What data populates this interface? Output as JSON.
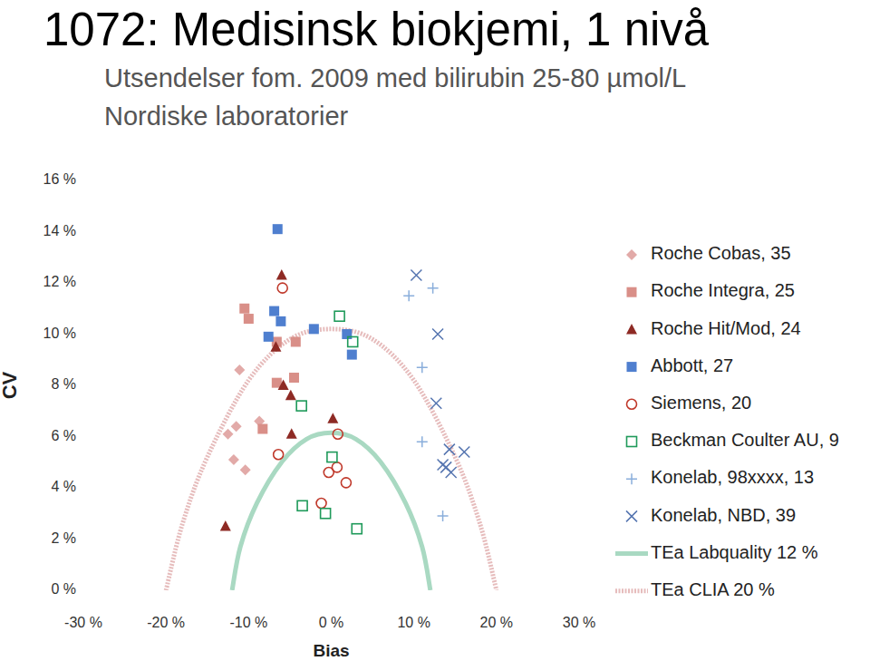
{
  "chart_data": {
    "type": "scatter",
    "title": "1072: Medisinsk biokjemi, 1 nivå",
    "subtitle": [
      "Utsendelser fom. 2009 med bilirubin 25-80 µmol/L",
      "Nordiske laboratorier"
    ],
    "x_label": "Bias",
    "y_label": "CV",
    "xlim": [
      -30,
      30
    ],
    "ylim": [
      0,
      16
    ],
    "xticks": [
      {
        "value": -30,
        "label": "-30 %"
      },
      {
        "value": -20,
        "label": "-20 %"
      },
      {
        "value": -10,
        "label": "-10 %"
      },
      {
        "value": 0,
        "label": "0 %"
      },
      {
        "value": 10,
        "label": "10 %"
      },
      {
        "value": 20,
        "label": "20 %"
      },
      {
        "value": 30,
        "label": "30 %"
      }
    ],
    "yticks": [
      {
        "value": 0,
        "label": "0 %"
      },
      {
        "value": 2,
        "label": "2 %"
      },
      {
        "value": 4,
        "label": "4 %"
      },
      {
        "value": 6,
        "label": "6 %"
      },
      {
        "value": 8,
        "label": "8 %"
      },
      {
        "value": 10,
        "label": "10 %"
      },
      {
        "value": 12,
        "label": "12 %"
      },
      {
        "value": 14,
        "label": "14 %"
      },
      {
        "value": 16,
        "label": "16 %"
      }
    ],
    "grid": false,
    "legend": "right",
    "series": [
      {
        "name": "Roche Cobas, 35",
        "color": "#e2aaa8",
        "marker": "diamond",
        "x": [
          -11.1,
          -11.5,
          -12.5,
          -11.8,
          -10.4,
          -8.7
        ],
        "values": [
          8.6,
          6.4,
          6.1,
          5.1,
          4.7,
          6.6
        ]
      },
      {
        "name": "Roche Integra, 25",
        "color": "#d98f88",
        "marker": "square",
        "x": [
          -10.5,
          -10.0,
          -6.6,
          -4.3,
          -6.6,
          -4.5,
          -8.3
        ],
        "values": [
          11.0,
          10.6,
          9.7,
          9.7,
          8.1,
          8.3,
          6.3
        ]
      },
      {
        "name": "Roche Hit/Mod, 24",
        "color": "#8e2a24",
        "marker": "triangle",
        "x": [
          -6.0,
          -6.7,
          -5.8,
          -4.9,
          -4.8,
          0.2,
          -12.8
        ],
        "values": [
          12.3,
          9.5,
          8.0,
          7.6,
          6.1,
          6.7,
          2.5
        ]
      },
      {
        "name": "Abbott, 27",
        "color": "#4f7fcf",
        "marker": "square",
        "x": [
          -6.5,
          -6.9,
          -6.1,
          -7.6,
          -2.1,
          1.9,
          2.5
        ],
        "values": [
          14.1,
          10.9,
          10.5,
          9.9,
          10.2,
          10.0,
          9.2
        ]
      },
      {
        "name": "Siemens, 20",
        "color": "#c0392b",
        "marker": "circle-open",
        "x": [
          -5.9,
          -6.4,
          0.8,
          0.7,
          -0.3,
          1.8,
          -1.2
        ],
        "values": [
          11.8,
          5.3,
          6.1,
          4.8,
          4.6,
          4.2,
          3.4
        ]
      },
      {
        "name": "Beckman Coulter AU, 9",
        "color": "#1f9a5a",
        "marker": "square-open",
        "x": [
          1.0,
          2.6,
          -3.6,
          0.1,
          -3.5,
          -0.7,
          3.1
        ],
        "values": [
          10.7,
          9.7,
          7.2,
          5.2,
          3.3,
          3.0,
          2.4
        ]
      },
      {
        "name": "Konelab, 98xxxx, 13",
        "color": "#8aaedb",
        "marker": "plus",
        "x": [
          9.4,
          12.3,
          11.0,
          11.0,
          13.5
        ],
        "values": [
          11.5,
          11.8,
          8.7,
          5.8,
          2.9
        ]
      },
      {
        "name": "Konelab, NBD, 39",
        "color": "#5575b0",
        "marker": "cross",
        "x": [
          10.3,
          12.9,
          12.7,
          14.3,
          16.1,
          13.5,
          13.9,
          14.5
        ],
        "values": [
          12.3,
          10.0,
          7.3,
          5.5,
          5.4,
          4.9,
          4.8,
          4.6
        ]
      },
      {
        "name": "TEa Labquality 12 %",
        "type": "line",
        "color": "#a9d9c2",
        "line_style": "solid",
        "x": [
          -12,
          -11,
          -9,
          -6,
          -3,
          0,
          3,
          6,
          9,
          11,
          12
        ],
        "values": [
          0,
          1.7,
          3.4,
          5.0,
          5.9,
          6.15,
          5.9,
          5.0,
          3.4,
          1.7,
          0
        ]
      },
      {
        "name": "TEa CLIA 20 %",
        "type": "line",
        "color": "#e6bcbc",
        "line_style": "dotted",
        "x": [
          -20,
          -18,
          -15,
          -10,
          -5,
          0,
          5,
          10,
          15,
          18,
          20
        ],
        "values": [
          0,
          2.6,
          5.2,
          8.2,
          9.8,
          10.2,
          9.8,
          8.2,
          5.2,
          2.6,
          0
        ]
      }
    ]
  }
}
